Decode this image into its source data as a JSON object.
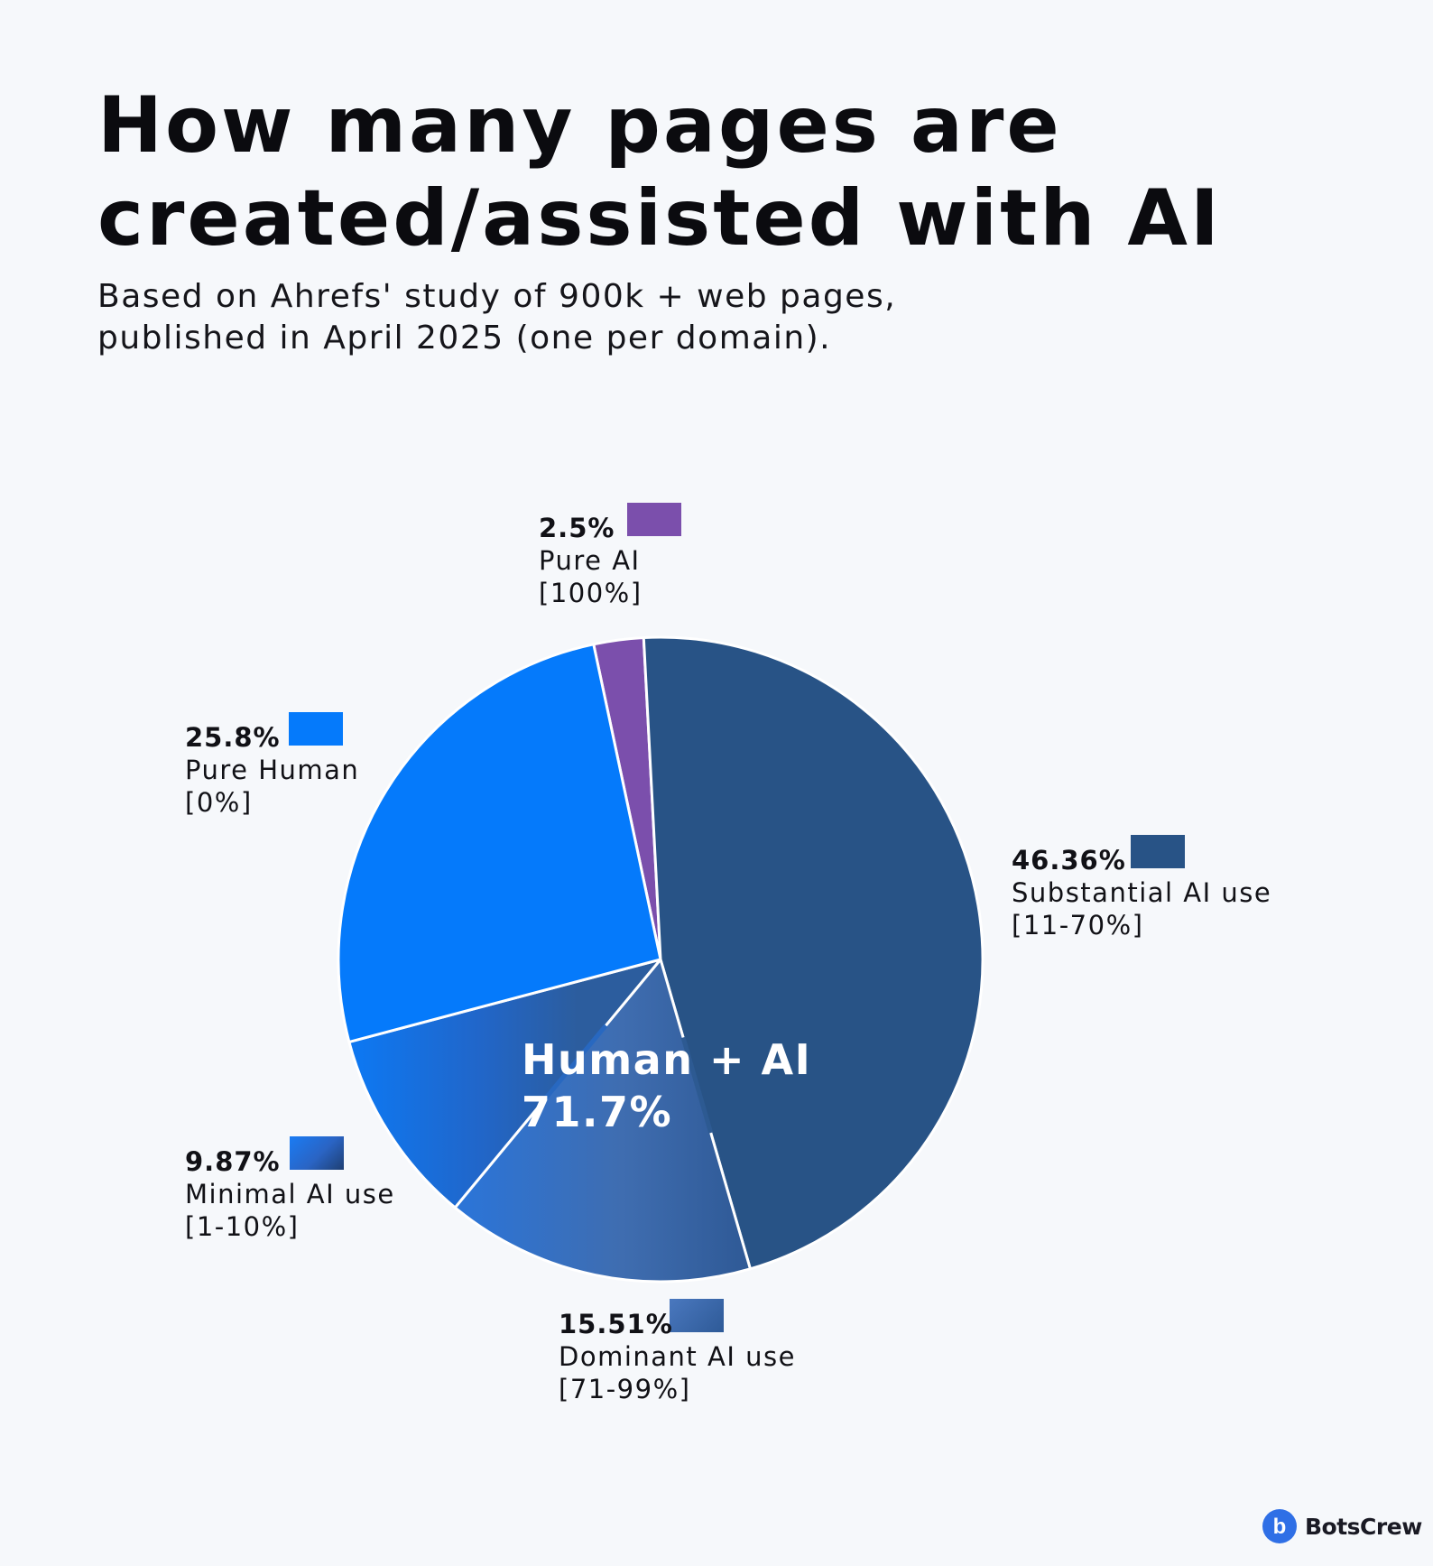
{
  "title_lines": [
    "How many pages are",
    "created/assisted with AI"
  ],
  "subtitle_lines": [
    "Based on Ahrefs' study of 900k + web pages,",
    "published in April 2025 (one per domain)."
  ],
  "center_label": {
    "line1": "Human + AI",
    "line2": "71.7%"
  },
  "brand": {
    "name": "BotsCrew",
    "logo_letter": "b",
    "color": "#2f6fe6"
  },
  "chart_data": {
    "type": "pie",
    "title": "How many pages are created/assisted with AI",
    "slices": [
      {
        "name": "Pure AI",
        "range": "[100%]",
        "value": 2.5,
        "value_label": "2.5%",
        "color": "#7b4fac"
      },
      {
        "name": "Substantial AI use",
        "range": "[11-70%]",
        "value": 46.36,
        "value_label": "46.36%",
        "color": "#285386"
      },
      {
        "name": "Dominant AI use",
        "range": "[71-99%]",
        "value": 15.51,
        "value_label": "15.51%",
        "color": "#3a66aa"
      },
      {
        "name": "Minimal AI use",
        "range": "[1-10%]",
        "value": 9.87,
        "value_label": "9.87%",
        "color": "#1a6fdc"
      },
      {
        "name": "Pure Human",
        "range": "[0%]",
        "value": 25.8,
        "value_label": "25.8%",
        "color": "#057afb"
      }
    ],
    "group_label": "Human + AI",
    "group_value": 71.7,
    "legend": "labels beside each slice"
  }
}
